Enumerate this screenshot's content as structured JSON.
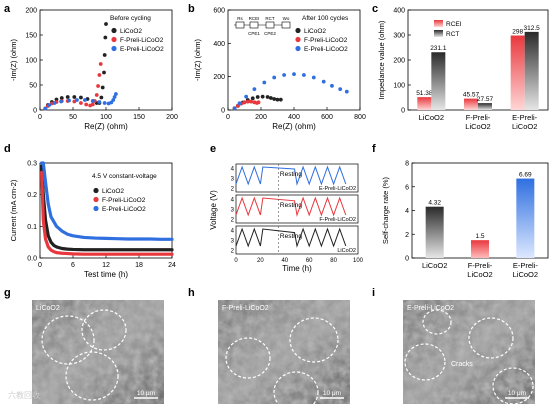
{
  "panels": {
    "a": {
      "letter": "a"
    },
    "b": {
      "letter": "b"
    },
    "c": {
      "letter": "c"
    },
    "d": {
      "letter": "d"
    },
    "e": {
      "letter": "e"
    },
    "f": {
      "letter": "f"
    },
    "g": {
      "letter": "g"
    },
    "h": {
      "letter": "h"
    },
    "i": {
      "letter": "i"
    }
  },
  "colors": {
    "black": "#222222",
    "red": "#e8383d",
    "blue": "#2f6fe0"
  },
  "chart_data": [
    {
      "id": "a",
      "type": "scatter",
      "xlabel": "Re(Z) (ohm)",
      "ylabel": "-Im(Z) (ohm)",
      "xlim": [
        0,
        200
      ],
      "ylim": [
        0,
        200
      ],
      "xticks": [
        "0",
        "50",
        "100",
        "150",
        "200"
      ],
      "yticks": [
        "0",
        "50",
        "100",
        "150",
        "200"
      ],
      "annotation": "Before cycling",
      "legend": [
        "LiCoO2",
        "F-Preli-LiCoO2",
        "E-Preli-LiCoO2"
      ],
      "series": [
        {
          "name": "LiCoO2",
          "color": "#222222",
          "x": [
            8,
            12,
            18,
            25,
            33,
            42,
            52,
            62,
            72,
            80,
            86,
            90,
            93,
            95,
            97,
            98,
            99,
            100
          ],
          "y": [
            3,
            10,
            16,
            21,
            24,
            26,
            26,
            25,
            22,
            18,
            14,
            14,
            25,
            45,
            75,
            110,
            145,
            172
          ]
        },
        {
          "name": "F-Preli-LiCoO2",
          "color": "#e8383d",
          "x": [
            8,
            12,
            18,
            25,
            33,
            42,
            52,
            62,
            70,
            76,
            80,
            83,
            86,
            88,
            90,
            92
          ],
          "y": [
            3,
            8,
            13,
            16,
            18,
            18,
            17,
            14,
            11,
            9,
            11,
            18,
            30,
            48,
            70,
            92
          ]
        },
        {
          "name": "E-Preli-LiCoO2",
          "color": "#2f6fe0",
          "x": [
            8,
            14,
            22,
            32,
            44,
            56,
            68,
            80,
            90,
            98,
            104,
            108,
            111,
            113,
            115
          ],
          "y": [
            3,
            10,
            14,
            17,
            19,
            20,
            20,
            18,
            16,
            14,
            13,
            15,
            20,
            26,
            32
          ]
        }
      ]
    },
    {
      "id": "b",
      "type": "scatter",
      "xlabel": "Re(Z) (ohm)",
      "ylabel": "-Im(Z) (ohm)",
      "xlim": [
        0,
        800
      ],
      "ylim": [
        0,
        600
      ],
      "xticks": [
        "0",
        "200",
        "400",
        "600",
        "800"
      ],
      "yticks": [
        "0",
        "200",
        "400",
        "600"
      ],
      "annotation": "After 100 cycles",
      "circuit_labels": [
        "Rs",
        "RCEI",
        "RCT",
        "CPE1",
        "CPE2",
        "Wo"
      ],
      "legend": [
        "LiCoO2",
        "F-Preli-LiCoO2",
        "E-Preli-LiCoO2"
      ],
      "series": [
        {
          "name": "LiCoO2",
          "color": "#222222",
          "x": [
            40,
            60,
            90,
            120,
            150,
            180,
            210,
            240,
            260,
            280,
            300,
            320
          ],
          "y": [
            10,
            25,
            45,
            60,
            70,
            78,
            80,
            78,
            72,
            66,
            62,
            62
          ]
        },
        {
          "name": "F-Preli-LiCoO2",
          "color": "#e8383d",
          "x": [
            40,
            60,
            80,
            100,
            120,
            140,
            160,
            175,
            185
          ],
          "y": [
            10,
            25,
            38,
            46,
            50,
            50,
            46,
            42,
            46
          ]
        },
        {
          "name": "E-Preli-LiCoO2",
          "color": "#2f6fe0",
          "x": [
            40,
            70,
            110,
            160,
            220,
            280,
            340,
            400,
            460,
            520,
            580,
            630,
            680,
            720
          ],
          "y": [
            10,
            40,
            80,
            125,
            165,
            195,
            210,
            215,
            210,
            195,
            170,
            145,
            125,
            110
          ]
        }
      ]
    },
    {
      "id": "c",
      "type": "bar",
      "ylabel": "Impedance value (ohm)",
      "ylim": [
        0,
        400
      ],
      "yticks": [
        "0",
        "100",
        "200",
        "300",
        "400"
      ],
      "categories": [
        "LiCoO2",
        "F-Preli-\nLiCoO2",
        "E-Preli-\nLiCoO2"
      ],
      "legend": [
        "RCEI",
        "RCT"
      ],
      "series": [
        {
          "name": "RCEI",
          "color": "#e8383d",
          "values": [
            51.38,
            45.57,
            298
          ],
          "labels": [
            "51.38",
            "45.57",
            "298"
          ]
        },
        {
          "name": "RCT",
          "color": "#333333",
          "values": [
            231.1,
            27.57,
            312.5
          ],
          "labels": [
            "231.1",
            "27.57",
            "312.5"
          ]
        }
      ]
    },
    {
      "id": "d",
      "type": "scatter",
      "xlabel": "Test time (h)",
      "ylabel": "Current (mA cm-2)",
      "xlim": [
        0,
        24
      ],
      "ylim": [
        0,
        0.3
      ],
      "xticks": [
        "0",
        "6",
        "12",
        "18",
        "24"
      ],
      "yticks": [
        "0.0",
        "0.1",
        "0.2",
        "0.3"
      ],
      "annotation": "4.5 V constant-voltage",
      "legend": [
        "LiCoO2",
        "F-Preli-LiCoO2",
        "E-Preli-LiCoO2"
      ],
      "series": [
        {
          "name": "LiCoO2",
          "color": "#222222",
          "x": [
            0.3,
            0.6,
            1,
            1.5,
            2,
            2.5,
            3,
            4,
            5,
            6,
            8,
            10,
            12,
            14,
            16,
            18,
            20,
            22,
            24
          ],
          "y": [
            0.29,
            0.2,
            0.12,
            0.07,
            0.05,
            0.04,
            0.035,
            0.03,
            0.028,
            0.027,
            0.026,
            0.026,
            0.026,
            0.026,
            0.026,
            0.026,
            0.026,
            0.026,
            0.026
          ]
        },
        {
          "name": "F-Preli-LiCoO2",
          "color": "#e8383d",
          "x": [
            0.3,
            0.6,
            1,
            1.5,
            2,
            2.5,
            3,
            4,
            5,
            6,
            8,
            10,
            12,
            14,
            16,
            18,
            20,
            22,
            24
          ],
          "y": [
            0.27,
            0.12,
            0.06,
            0.035,
            0.025,
            0.02,
            0.017,
            0.015,
            0.014,
            0.013,
            0.012,
            0.012,
            0.012,
            0.012,
            0.012,
            0.012,
            0.012,
            0.012,
            0.012
          ]
        },
        {
          "name": "E-Preli-LiCoO2",
          "color": "#2f6fe0",
          "x": [
            0.3,
            0.6,
            1,
            1.5,
            2,
            3,
            4,
            5,
            6,
            8,
            10,
            12,
            14,
            16,
            18,
            20,
            22,
            24
          ],
          "y": [
            0.3,
            0.3,
            0.24,
            0.17,
            0.13,
            0.1,
            0.085,
            0.075,
            0.07,
            0.065,
            0.063,
            0.062,
            0.061,
            0.06,
            0.06,
            0.06,
            0.059,
            0.059
          ]
        }
      ]
    },
    {
      "id": "e",
      "type": "line",
      "xlabel": "Time (h)",
      "ylabel": "Voltage (V)",
      "xlim": [
        0,
        100
      ],
      "xticks": [
        "0",
        "10",
        "20",
        "30",
        "40",
        "50",
        "60",
        "70",
        "80",
        "90",
        "100"
      ],
      "panel_yticks": [
        "4",
        "3",
        "2"
      ],
      "resting_label": "Resting",
      "legend": [
        "E-Preli-LiCoO2",
        "F-Preli-LiCoO2",
        "LiCoO2"
      ],
      "series": [
        {
          "name": "E-Preli-LiCoO2",
          "color": "#2f6fe0"
        },
        {
          "name": "F-Preli-LiCoO2",
          "color": "#e8383d"
        },
        {
          "name": "LiCoO2",
          "color": "#222222"
        }
      ]
    },
    {
      "id": "f",
      "type": "bar",
      "ylabel": "Self-charge rate (%)",
      "ylim": [
        0,
        8
      ],
      "yticks": [
        "0",
        "2",
        "4",
        "6",
        "8"
      ],
      "categories": [
        "LiCoO2",
        "F-Preli-\nLiCoO2",
        "E-Preli-\nLiCoO2"
      ],
      "series": [
        {
          "values": [
            4.32,
            1.5,
            6.69
          ],
          "labels": [
            "4.32",
            "1.5",
            "6.69"
          ]
        }
      ]
    }
  ],
  "sem": [
    {
      "id": "g",
      "label": "LiCoO2",
      "scale": "10 μm",
      "extra": ""
    },
    {
      "id": "h",
      "label": "F-Preli-LiCoO2",
      "scale": "10 μm",
      "extra": ""
    },
    {
      "id": "i",
      "label": "E-Preli-LiCoO2",
      "scale": "10 μm",
      "extra": "Cracks"
    }
  ],
  "watermark": "六教回收"
}
